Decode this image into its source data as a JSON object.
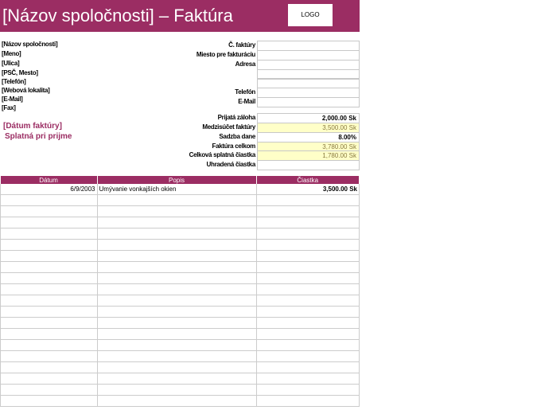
{
  "header": {
    "title": "[Názov spoločnosti] – Faktúra",
    "logo": "LOGO"
  },
  "company": [
    "[Názov spoločnosti]",
    "[Meno]",
    "[Ulica]",
    "[PSČ, Mesto]",
    "[Telefón]",
    "[Webová lokalita]",
    "[E-Mail]",
    "[Fax]"
  ],
  "billing_fields": [
    {
      "label": "Č. faktúry",
      "value": ""
    },
    {
      "label": "Miesto pre fakturáciu",
      "value": ""
    },
    {
      "label": "Adresa",
      "value": ""
    },
    {
      "label": "",
      "value": ""
    },
    {
      "label": "",
      "value": ""
    },
    {
      "label": "Telefón",
      "value": ""
    },
    {
      "label": "E-Mail",
      "value": ""
    }
  ],
  "invoice_date": "[Dátum faktúry]",
  "due": "Splatná pri prijme",
  "totals": [
    {
      "label": "Prijatá záloha",
      "value": "2,000.00 Sk"
    },
    {
      "label": "Medzisúčet faktúry",
      "value": "3,500.00 Sk"
    },
    {
      "label": "Sadzba dane",
      "value": "8.00%"
    },
    {
      "label": "Faktúra celkom",
      "value": "3,780.00 Sk"
    },
    {
      "label": "Celková splatná čiastka",
      "value": "1,780.00 Sk"
    },
    {
      "label": "Uhradená čiastka",
      "value": ""
    }
  ],
  "table": {
    "headers": [
      "Dátum",
      "Popis",
      "Čiastka"
    ],
    "rows": [
      [
        "6/9/2003",
        "Umývanie vonkajších okien",
        "3,500.00 Sk"
      ]
    ]
  }
}
